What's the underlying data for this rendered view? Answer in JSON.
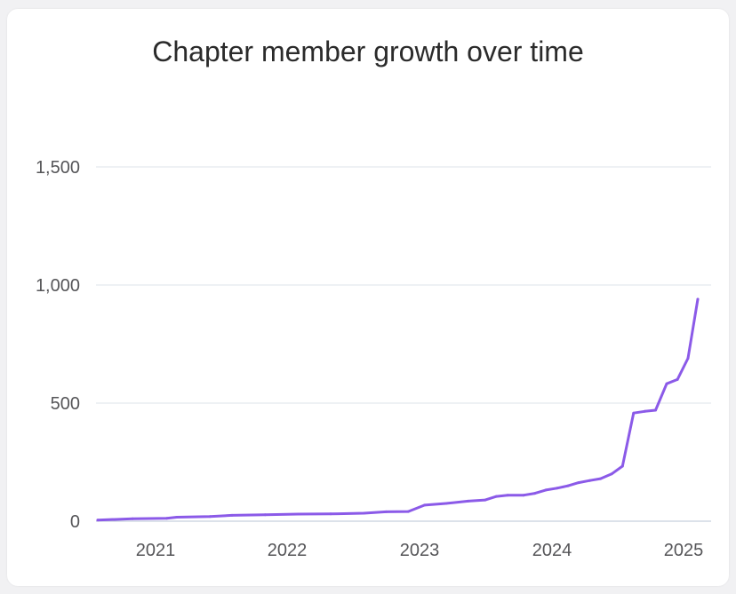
{
  "chart_data": {
    "type": "line",
    "title": "Chapter member growth over time",
    "xlabel": "",
    "ylabel": "",
    "ylim": [
      0,
      1800
    ],
    "xlim": [
      "2020-08-01",
      "2025-03-15"
    ],
    "grid": true,
    "color": "#8b5ae8",
    "y_ticks": [
      {
        "value": 0,
        "label": "0"
      },
      {
        "value": 500,
        "label": "500"
      },
      {
        "value": 1000,
        "label": "1,000"
      },
      {
        "value": 1500,
        "label": "1,500"
      }
    ],
    "x_ticks": [
      {
        "value": "2021-01-01",
        "label": "2021"
      },
      {
        "value": "2022-01-01",
        "label": "2022"
      },
      {
        "value": "2023-01-01",
        "label": "2023"
      },
      {
        "value": "2024-01-01",
        "label": "2024"
      },
      {
        "value": "2025-01-01",
        "label": "2025"
      }
    ],
    "series": [
      {
        "points": [
          {
            "x": "2020-08-01",
            "y": 5
          },
          {
            "x": "2020-11-01",
            "y": 10
          },
          {
            "x": "2021-02-01",
            "y": 12
          },
          {
            "x": "2021-03-01",
            "y": 17
          },
          {
            "x": "2021-06-01",
            "y": 20
          },
          {
            "x": "2021-08-01",
            "y": 25
          },
          {
            "x": "2021-11-01",
            "y": 27
          },
          {
            "x": "2022-02-01",
            "y": 30
          },
          {
            "x": "2022-05-01",
            "y": 31
          },
          {
            "x": "2022-08-01",
            "y": 34
          },
          {
            "x": "2022-10-01",
            "y": 40
          },
          {
            "x": "2022-12-01",
            "y": 41
          },
          {
            "x": "2023-01-15",
            "y": 68
          },
          {
            "x": "2023-03-15",
            "y": 75
          },
          {
            "x": "2023-05-15",
            "y": 85
          },
          {
            "x": "2023-07-01",
            "y": 90
          },
          {
            "x": "2023-08-01",
            "y": 105
          },
          {
            "x": "2023-09-01",
            "y": 110
          },
          {
            "x": "2023-10-15",
            "y": 110
          },
          {
            "x": "2023-11-15",
            "y": 118
          },
          {
            "x": "2023-12-15",
            "y": 132
          },
          {
            "x": "2024-01-15",
            "y": 140
          },
          {
            "x": "2024-02-15",
            "y": 150
          },
          {
            "x": "2024-03-15",
            "y": 163
          },
          {
            "x": "2024-04-15",
            "y": 172
          },
          {
            "x": "2024-05-15",
            "y": 180
          },
          {
            "x": "2024-06-15",
            "y": 200
          },
          {
            "x": "2024-07-15",
            "y": 233
          },
          {
            "x": "2024-08-15",
            "y": 458
          },
          {
            "x": "2024-09-15",
            "y": 465
          },
          {
            "x": "2024-10-15",
            "y": 470
          },
          {
            "x": "2024-11-15",
            "y": 582
          },
          {
            "x": "2024-12-15",
            "y": 600
          },
          {
            "x": "2025-01-15",
            "y": 690
          },
          {
            "x": "2025-02-15",
            "y": 940
          }
        ]
      }
    ]
  }
}
